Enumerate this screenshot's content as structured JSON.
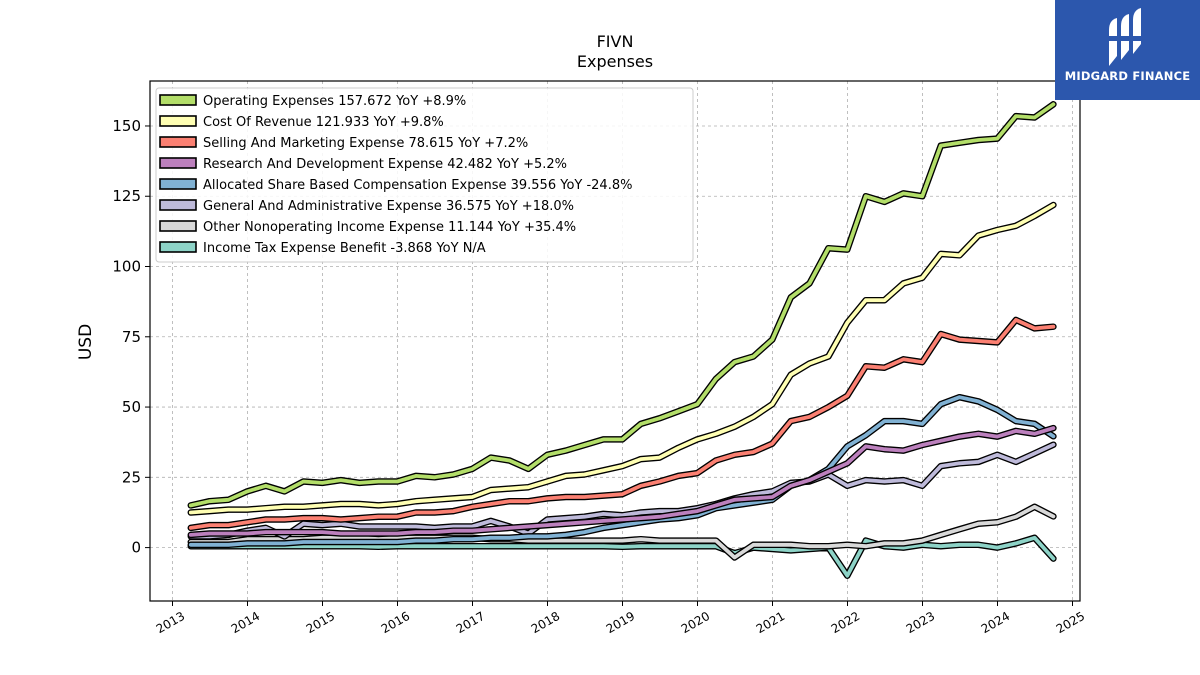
{
  "chart_data": {
    "type": "line",
    "title": "FIVN",
    "subtitle": "Expenses",
    "ylabel": "USD",
    "xlabel": "",
    "xlim": [
      2012.7,
      2025.1
    ],
    "ylim": [
      -19,
      166
    ],
    "grid": true,
    "legend_position": "top-left",
    "x_ticks": [
      "2013",
      "2014",
      "2015",
      "2016",
      "2017",
      "2018",
      "2019",
      "2020",
      "2021",
      "2022",
      "2023",
      "2024",
      "2025"
    ],
    "y_ticks": [
      0,
      25,
      50,
      75,
      100,
      125,
      150
    ],
    "x": [
      "2013-03-31",
      "2013-06-30",
      "2013-09-30",
      "2013-12-31",
      "2014-03-31",
      "2014-06-30",
      "2014-09-30",
      "2014-12-31",
      "2015-03-31",
      "2015-06-30",
      "2015-09-30",
      "2015-12-31",
      "2016-03-31",
      "2016-06-30",
      "2016-09-30",
      "2016-12-31",
      "2017-03-31",
      "2017-06-30",
      "2017-09-30",
      "2017-12-31",
      "2018-03-31",
      "2018-06-30",
      "2018-09-30",
      "2018-12-31",
      "2019-03-31",
      "2019-06-30",
      "2019-09-30",
      "2019-12-31",
      "2020-03-31",
      "2020-06-30",
      "2020-09-30",
      "2020-12-31",
      "2021-03-31",
      "2021-06-30",
      "2021-09-30",
      "2021-12-31",
      "2022-03-31",
      "2022-06-30",
      "2022-09-30",
      "2022-12-31",
      "2023-03-31",
      "2023-06-30",
      "2023-09-30",
      "2023-12-31",
      "2024-03-31",
      "2024-06-30",
      "2024-09-30"
    ],
    "series": [
      {
        "name": "Operating Expenses",
        "legend": "Operating Expenses  157.672 YoY +8.9%",
        "color": "#b3de69",
        "values": [
          15,
          16.5,
          17,
          20,
          22,
          20,
          23.5,
          23,
          24,
          23,
          23.5,
          23.5,
          25.5,
          25,
          26,
          28,
          32,
          31,
          28,
          33,
          34.5,
          36.5,
          38.5,
          38.5,
          44,
          46,
          48.5,
          51,
          60,
          66,
          68,
          74,
          89,
          94,
          106.5,
          106,
          125,
          123,
          126,
          125,
          143,
          144,
          145,
          145.5,
          153.5,
          153,
          157.7
        ]
      },
      {
        "name": "Cost Of Revenue",
        "legend": "Cost Of Revenue  121.933 YoY +9.8%",
        "color": "#ffffb3",
        "values": [
          12.5,
          13,
          13.5,
          13.5,
          14,
          14.5,
          14.5,
          15,
          15.5,
          15.5,
          15,
          15.5,
          16.5,
          17,
          17.5,
          18,
          20.5,
          21,
          21.5,
          23.5,
          25.5,
          26,
          27.5,
          29,
          31.5,
          32,
          35.5,
          38.5,
          40.5,
          43,
          46.5,
          51,
          61.5,
          65.5,
          68,
          80,
          88,
          88,
          94,
          96,
          104.5,
          104,
          111,
          113,
          114.5,
          118,
          121.9
        ]
      },
      {
        "name": "Selling And Marketing Expense",
        "legend": "Selling And Marketing Expense  78.615 YoY +7.2%",
        "color": "#fb8072",
        "values": [
          7,
          8,
          8,
          9,
          10,
          10,
          10.5,
          10.5,
          10,
          10.5,
          11,
          11,
          12.5,
          12.5,
          13,
          14.5,
          15.5,
          16.5,
          16.5,
          17.5,
          18,
          18,
          18.5,
          19,
          22,
          23.5,
          25.5,
          26.5,
          31,
          33,
          34,
          37,
          45,
          46.5,
          50,
          54,
          64.5,
          64,
          67,
          66,
          76,
          74,
          73.5,
          73,
          81,
          78,
          78.6
        ]
      },
      {
        "name": "Research And Development Expense",
        "legend": "Research And Development Expense  42.482 YoY +5.2%",
        "color": "#bc80bd",
        "values": [
          4.5,
          5,
          5,
          5,
          5.5,
          5.5,
          5.5,
          5.5,
          5,
          5,
          5,
          5,
          5.5,
          5.5,
          6,
          6,
          6.5,
          7,
          7.5,
          8,
          8.5,
          9,
          9.5,
          10,
          10.5,
          11,
          12,
          13,
          15,
          17,
          17.5,
          18,
          22,
          24,
          27,
          30,
          36,
          35,
          34.5,
          36.5,
          38,
          39.5,
          40.5,
          39.5,
          41.5,
          40.5,
          42.5
        ]
      },
      {
        "name": "Allocated Share Based Compensation Expense",
        "legend": "Allocated Share Based Compensation Expense  39.556 YoY -24.8%",
        "color": "#80b1d3",
        "values": [
          1,
          1,
          1,
          1.5,
          1.5,
          1.5,
          2,
          2,
          2,
          2,
          2,
          2,
          2.5,
          2.5,
          3,
          3,
          3.5,
          3.5,
          4,
          4,
          4.5,
          5.5,
          7,
          8,
          9,
          10,
          10.5,
          11.5,
          14,
          15,
          16,
          17,
          22,
          24,
          28,
          36,
          40,
          45,
          45,
          44,
          51,
          53.5,
          52,
          49,
          45,
          44,
          39.6
        ]
      },
      {
        "name": "General And Administrative Expense",
        "legend": "General And Administrative Expense  36.575 YoY +18.0%",
        "color": "#bebada",
        "values": [
          4,
          4,
          4.5,
          6,
          7,
          4,
          8.5,
          8,
          8.5,
          7.5,
          7.5,
          7.5,
          7.5,
          7,
          7.5,
          7.5,
          9.5,
          7.5,
          5,
          10,
          10.5,
          11,
          12,
          11.5,
          12.5,
          13,
          13,
          14,
          15.5,
          17.5,
          19,
          20,
          23,
          23.5,
          26,
          22,
          24,
          23.5,
          24,
          22,
          29,
          30,
          30.5,
          33,
          30.5,
          33.5,
          36.6
        ]
      },
      {
        "name": "Other Nonoperating Income Expense",
        "legend": "Other Nonoperating Income Expense  11.144 YoY +35.4%",
        "color": "#d9d9d9",
        "values": [
          2,
          2,
          2,
          3,
          3,
          3,
          3,
          3.5,
          3.5,
          3.5,
          3,
          3.5,
          3.5,
          3.5,
          3.5,
          3.5,
          3,
          3,
          2.5,
          2.5,
          2.5,
          2.5,
          2.5,
          2.5,
          3,
          2.5,
          2.5,
          2.5,
          2.5,
          -3.5,
          1,
          1,
          1,
          0.5,
          0.5,
          1,
          0.5,
          1.5,
          1.5,
          2.5,
          4.5,
          6.5,
          8.5,
          9,
          11,
          14.5,
          11.1
        ]
      },
      {
        "name": "Income Tax Expense Benefit",
        "legend": "Income Tax Expense Benefit  -3.868 YoY N/A",
        "color": "#8dd3c7",
        "values": [
          0.5,
          0.5,
          0.5,
          0.5,
          0.5,
          0.5,
          0.5,
          0.5,
          0.5,
          0.5,
          0.3,
          0.5,
          0.5,
          0.5,
          0.5,
          0.5,
          0.5,
          0.5,
          0.5,
          0.5,
          0.5,
          0.5,
          0.5,
          0.3,
          0.5,
          0.5,
          0.5,
          0.5,
          0.5,
          -2,
          0,
          -0.5,
          -1,
          -0.5,
          0,
          -10,
          2.5,
          0.5,
          0,
          1,
          0.5,
          1,
          1,
          0,
          1.5,
          3.5,
          -3.9
        ]
      }
    ]
  },
  "brand": {
    "name": "MIDGARD FINANCE",
    "background": "#2c57ad",
    "icon": "midgard-logo-icon"
  }
}
